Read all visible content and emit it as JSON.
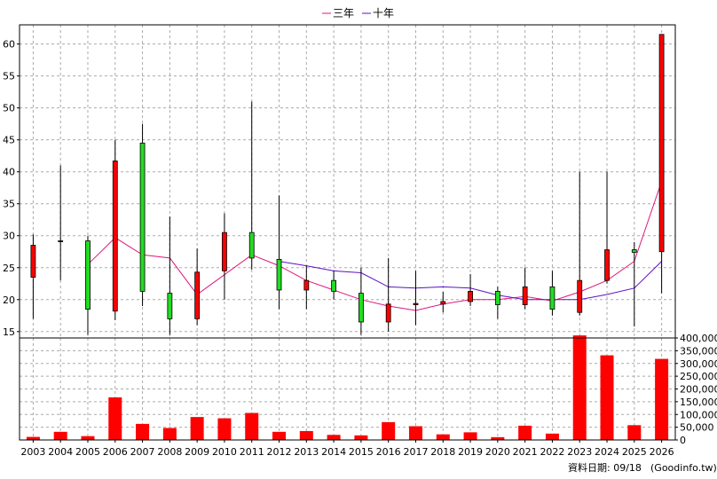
{
  "chart_data": [
    {
      "type": "candlestick",
      "legend": [
        {
          "label": "三年",
          "color": "#e0177a"
        },
        {
          "label": "十年",
          "color": "#5b10c8"
        }
      ],
      "legend_position": "top-center",
      "x": [
        "2003",
        "2004",
        "2005",
        "2006",
        "2007",
        "2008",
        "2009",
        "2010",
        "2011",
        "2012",
        "2013",
        "2014",
        "2015",
        "2016",
        "2017",
        "2018",
        "2019",
        "2020",
        "2021",
        "2022",
        "2023",
        "2024",
        "2025",
        "2026"
      ],
      "ylim": [
        14,
        63
      ],
      "yticks": [
        15,
        20,
        25,
        30,
        35,
        40,
        45,
        50,
        55,
        60
      ],
      "grid": true,
      "up_color": "#ff0000",
      "down_color": "#22dd22",
      "candles": [
        {
          "x": "2003",
          "open": 23.5,
          "close": 28.5,
          "high": 30.2,
          "low": 17.0
        },
        {
          "x": "2004",
          "open": 29.2,
          "close": 29.2,
          "high": 41.0,
          "low": 23.0
        },
        {
          "x": "2005",
          "open": 29.2,
          "close": 18.5,
          "high": 30.0,
          "low": 14.5
        },
        {
          "x": "2006",
          "open": 18.2,
          "close": 41.7,
          "high": 45.0,
          "low": 16.8
        },
        {
          "x": "2007",
          "open": 44.5,
          "close": 21.3,
          "high": 47.5,
          "low": 19.0
        },
        {
          "x": "2008",
          "open": 21.0,
          "close": 17.0,
          "high": 33.0,
          "low": 14.5
        },
        {
          "x": "2009",
          "open": 17.0,
          "close": 24.3,
          "high": 28.0,
          "low": 16.0
        },
        {
          "x": "2010",
          "open": 24.5,
          "close": 30.5,
          "high": 33.5,
          "low": 20.0
        },
        {
          "x": "2011",
          "open": 30.5,
          "close": 26.5,
          "high": 51.0,
          "low": 24.7
        },
        {
          "x": "2012",
          "open": 26.3,
          "close": 21.5,
          "high": 36.3,
          "low": 18.5
        },
        {
          "x": "2013",
          "open": 21.5,
          "close": 23.0,
          "high": 25.3,
          "low": 18.5
        },
        {
          "x": "2014",
          "open": 23.0,
          "close": 21.3,
          "high": 24.5,
          "low": 20.0
        },
        {
          "x": "2015",
          "open": 21.0,
          "close": 16.5,
          "high": 25.0,
          "low": 14.5
        },
        {
          "x": "2016",
          "open": 16.5,
          "close": 19.3,
          "high": 26.5,
          "low": 15.0
        },
        {
          "x": "2017",
          "open": 19.2,
          "close": 19.4,
          "high": 24.5,
          "low": 16.0
        },
        {
          "x": "2018",
          "open": 19.3,
          "close": 19.7,
          "high": 21.2,
          "low": 18.0
        },
        {
          "x": "2019",
          "open": 19.7,
          "close": 21.3,
          "high": 24.0,
          "low": 19.0
        },
        {
          "x": "2020",
          "open": 21.3,
          "close": 19.2,
          "high": 22.0,
          "low": 17.0
        },
        {
          "x": "2021",
          "open": 19.2,
          "close": 22.0,
          "high": 25.0,
          "low": 18.5
        },
        {
          "x": "2022",
          "open": 22.0,
          "close": 18.5,
          "high": 24.5,
          "low": 17.5
        },
        {
          "x": "2023",
          "open": 18.0,
          "close": 23.0,
          "high": 40.0,
          "low": 17.5
        },
        {
          "x": "2024",
          "open": 23.0,
          "close": 27.8,
          "high": 40.0,
          "low": 22.5
        },
        {
          "x": "2025",
          "open": 27.8,
          "close": 27.4,
          "high": 29.0,
          "low": 15.8
        },
        {
          "x": "2026",
          "open": 27.5,
          "close": 61.5,
          "high": 61.5,
          "low": 21.0
        }
      ],
      "series": [
        {
          "name": "三年",
          "color": "#e0177a",
          "x": [
            "2005",
            "2006",
            "2007",
            "2008",
            "2009",
            "2010",
            "2011",
            "2012",
            "2013",
            "2014",
            "2015",
            "2016",
            "2017",
            "2018",
            "2019",
            "2020",
            "2021",
            "2022",
            "2023",
            "2024",
            "2025",
            "2026"
          ],
          "values": [
            25.5,
            29.7,
            27.0,
            26.5,
            20.8,
            23.9,
            27.0,
            25.3,
            23.0,
            21.5,
            20.0,
            19.0,
            18.3,
            19.3,
            20.0,
            20.0,
            20.5,
            19.8,
            21.2,
            23.0,
            26.0,
            38.5
          ]
        },
        {
          "name": "十年",
          "color": "#5b10c8",
          "x": [
            "2012",
            "2013",
            "2014",
            "2015",
            "2016",
            "2017",
            "2018",
            "2019",
            "2020",
            "2021",
            "2022",
            "2023",
            "2024",
            "2025",
            "2026"
          ],
          "values": [
            26.0,
            25.3,
            24.5,
            24.2,
            22.0,
            21.8,
            22.0,
            21.8,
            20.7,
            20.0,
            20.0,
            20.0,
            20.8,
            21.8,
            26.0
          ]
        }
      ]
    },
    {
      "type": "bar",
      "categories": [
        "2003",
        "2004",
        "2005",
        "2006",
        "2007",
        "2008",
        "2009",
        "2010",
        "2011",
        "2012",
        "2013",
        "2014",
        "2015",
        "2016",
        "2017",
        "2018",
        "2019",
        "2020",
        "2021",
        "2022",
        "2023",
        "2024",
        "2025",
        "2026"
      ],
      "values": [
        12000,
        32000,
        15000,
        167000,
        63000,
        47000,
        90000,
        85000,
        106000,
        32000,
        35000,
        20000,
        18000,
        70000,
        54000,
        22000,
        30000,
        11000,
        56000,
        25000,
        410000,
        332000,
        58000,
        318000
      ],
      "color": "#ff0000",
      "ylim": [
        0,
        400000
      ],
      "yticks": [
        0,
        50000,
        100000,
        150000,
        200000,
        250000,
        300000,
        350000,
        400000
      ],
      "ytick_labels": [
        "0",
        "50,000",
        "100,000",
        "150,000",
        "200,000",
        "250,000",
        "300,000",
        "350,000",
        "400,000"
      ],
      "grid": true
    }
  ],
  "footer": {
    "date_label": "資料日期: 09/18",
    "source": "(Goodinfo.tw)"
  }
}
